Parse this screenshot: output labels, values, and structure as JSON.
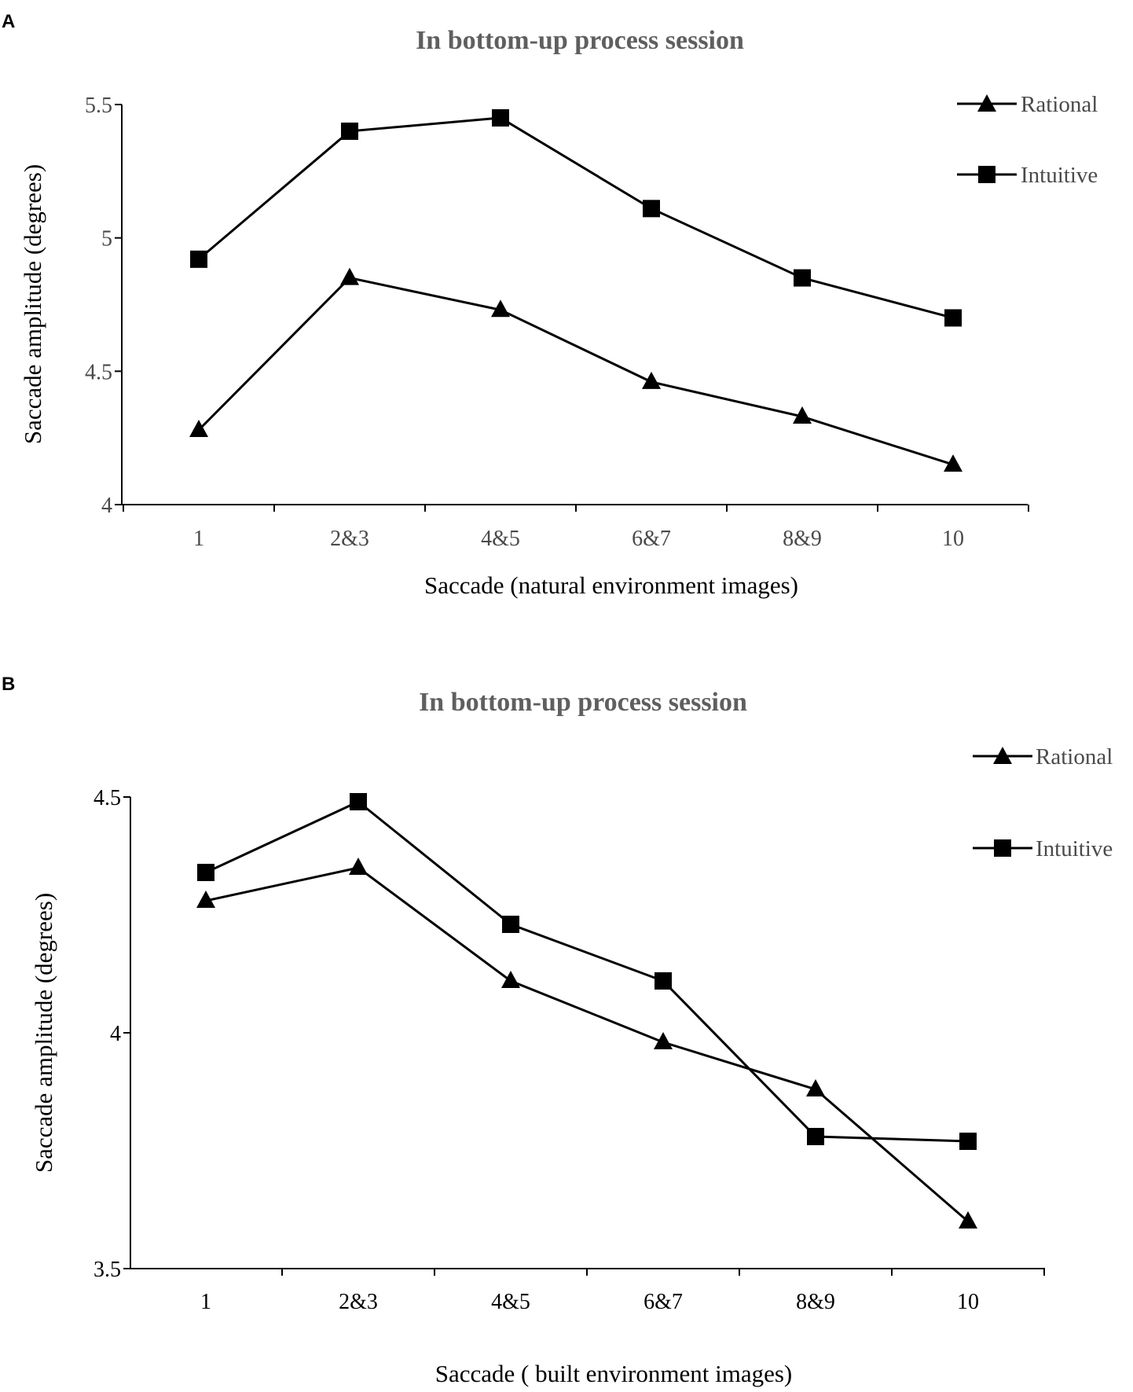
{
  "chart_data": [
    {
      "panel": "A",
      "type": "line",
      "title": "In bottom-up process session",
      "xlabel": "Saccade (natural environment images)",
      "ylabel": "Saccade amplitude (degrees)",
      "categories": [
        "1",
        "2&3",
        "4&5",
        "6&7",
        "8&9",
        "10"
      ],
      "ylim": [
        4,
        5.5
      ],
      "yticks": [
        4,
        4.5,
        5,
        5.5
      ],
      "ytick_labels": [
        "4",
        "4.5",
        "5",
        "5.5"
      ],
      "grid": false,
      "legend_position": "top-right",
      "series": [
        {
          "name": "Rational",
          "marker": "triangle",
          "values": [
            4.28,
            4.85,
            4.73,
            4.46,
            4.33,
            4.15
          ]
        },
        {
          "name": "Intuitive",
          "marker": "square",
          "values": [
            4.92,
            5.4,
            5.45,
            5.11,
            4.85,
            4.7
          ]
        }
      ]
    },
    {
      "panel": "B",
      "type": "line",
      "title": "In bottom-up process session",
      "xlabel": "Saccade ( built environment images)",
      "ylabel": "Saccade amplitude (degrees)",
      "categories": [
        "1",
        "2&3",
        "4&5",
        "6&7",
        "8&9",
        "10"
      ],
      "ylim": [
        3.5,
        4.5
      ],
      "yticks": [
        3.5,
        4,
        4.5
      ],
      "ytick_labels": [
        "3.5",
        "4",
        "4.5"
      ],
      "grid": false,
      "legend_position": "top-right",
      "series": [
        {
          "name": "Rational",
          "marker": "triangle",
          "values": [
            4.28,
            4.35,
            4.11,
            3.98,
            3.88,
            3.6
          ]
        },
        {
          "name": "Intuitive",
          "marker": "square",
          "values": [
            4.34,
            4.49,
            4.23,
            4.11,
            3.78,
            3.77
          ]
        }
      ]
    }
  ],
  "colors": {
    "title": "#5f5f5f",
    "ink": "#000000",
    "muted_text": "#4a4a4a",
    "background": "#ffffff"
  }
}
